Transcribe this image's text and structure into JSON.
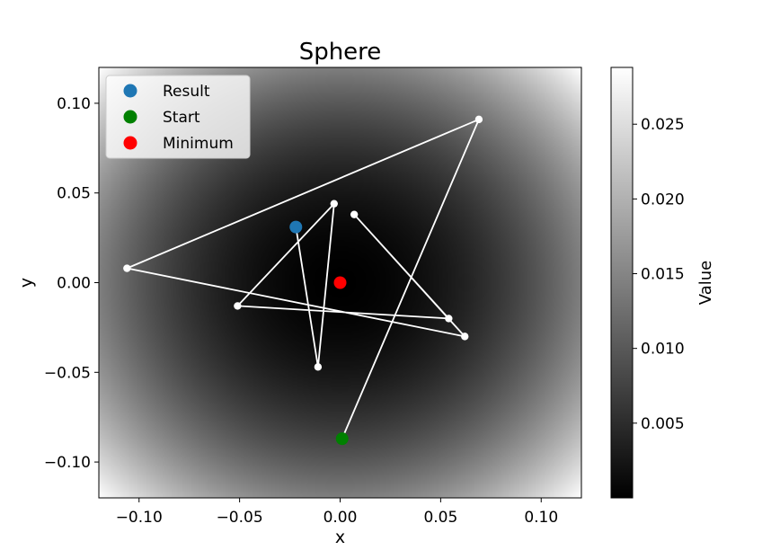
{
  "chart_data": {
    "type": "scatter",
    "title": "Sphere",
    "xlabel": "x",
    "ylabel": "y",
    "xlim": [
      -0.12,
      0.12
    ],
    "ylim": [
      -0.12,
      0.12
    ],
    "xticks": [
      {
        "v": -0.1,
        "label": "−0.10"
      },
      {
        "v": -0.05,
        "label": "−0.05"
      },
      {
        "v": 0.0,
        "label": "0.00"
      },
      {
        "v": 0.05,
        "label": "0.05"
      },
      {
        "v": 0.1,
        "label": "0.10"
      }
    ],
    "yticks": [
      {
        "v": 0.1,
        "label": "0.10"
      },
      {
        "v": 0.05,
        "label": "0.05"
      },
      {
        "v": 0.0,
        "label": "0.00"
      },
      {
        "v": -0.05,
        "label": "−0.05"
      },
      {
        "v": -0.1,
        "label": "−0.10"
      }
    ],
    "background": {
      "function": "sphere",
      "colormap": "gray",
      "vmin": 0.0,
      "vmax": 0.0288
    },
    "path": {
      "color": "#ffffff",
      "points": [
        {
          "x": 0.001,
          "y": -0.087
        },
        {
          "x": 0.069,
          "y": 0.091
        },
        {
          "x": -0.106,
          "y": 0.008
        },
        {
          "x": 0.062,
          "y": -0.03
        },
        {
          "x": 0.007,
          "y": 0.038
        },
        {
          "x": 0.054,
          "y": -0.02
        },
        {
          "x": -0.051,
          "y": -0.013
        },
        {
          "x": -0.003,
          "y": 0.044
        },
        {
          "x": -0.011,
          "y": -0.047
        },
        {
          "x": -0.022,
          "y": 0.031
        }
      ]
    },
    "markers": [
      {
        "name": "Result",
        "x": -0.022,
        "y": 0.031,
        "color": "#1f77b4"
      },
      {
        "name": "Start",
        "x": 0.001,
        "y": -0.087,
        "color": "#008000"
      },
      {
        "name": "Minimum",
        "x": 0.0,
        "y": 0.0,
        "color": "#ff0000"
      }
    ],
    "legend": {
      "placement": "upper-left"
    },
    "colorbar": {
      "label": "Value",
      "ticks": [
        {
          "v": 0.005,
          "label": "0.005"
        },
        {
          "v": 0.01,
          "label": "0.010"
        },
        {
          "v": 0.015,
          "label": "0.015"
        },
        {
          "v": 0.02,
          "label": "0.020"
        },
        {
          "v": 0.025,
          "label": "0.025"
        }
      ]
    }
  }
}
